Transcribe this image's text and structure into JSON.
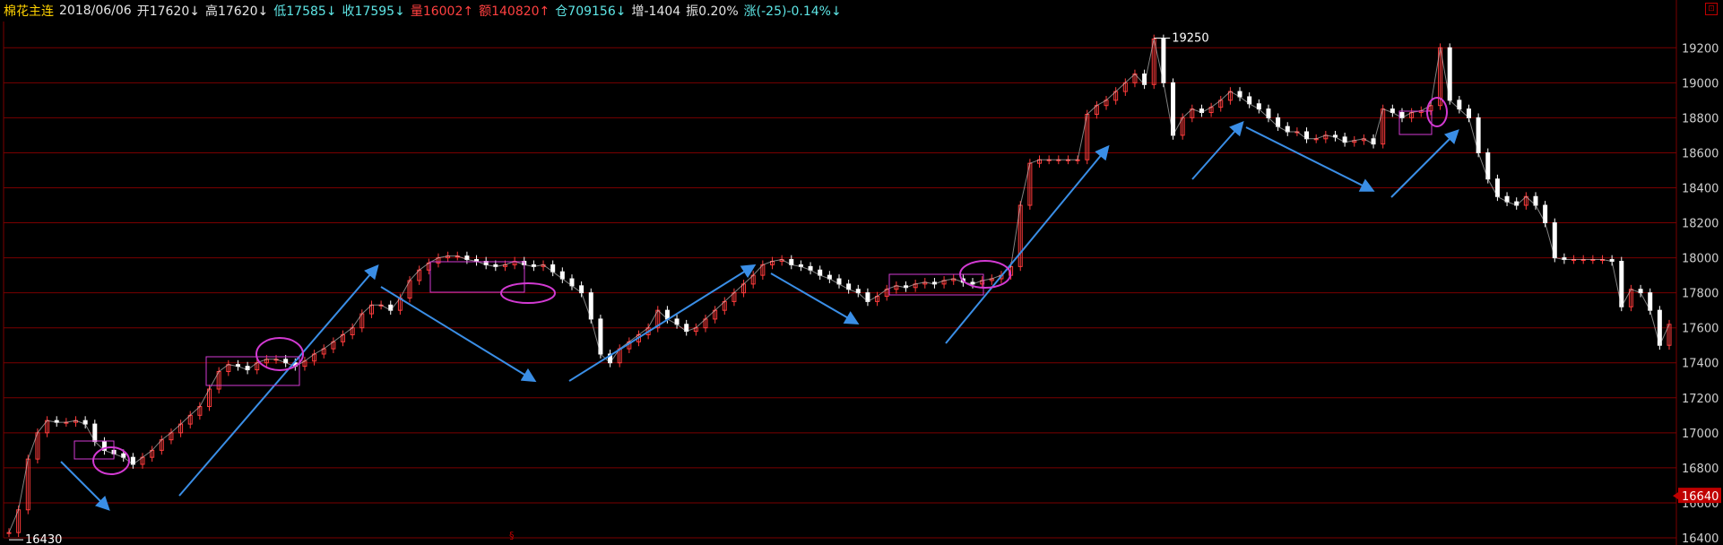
{
  "header": {
    "symbol": "棉花主连",
    "date": "2018/06/06",
    "open": "开17620↓",
    "high": "高17620↓",
    "low": "低17585↓",
    "close": "收17595↓",
    "volume": "量16002↑",
    "amount": "额140820↑",
    "open_interest": "仓709156↓",
    "oi_change": "增-1404",
    "amplitude": "振0.20%",
    "change": "涨(-25)-0.14%↓"
  },
  "colors": {
    "background": "#000000",
    "grid": "#7a0000",
    "axis_text": "#cfcfcf",
    "up": "#ff3b3b",
    "down": "#ffffff",
    "arrow": "#3a8ee6",
    "annotation": "#d23ad2",
    "price_tag": "#c00000"
  },
  "bottom_marker": "§",
  "chart_data": {
    "type": "line",
    "title": "",
    "xlabel": "",
    "ylabel": "",
    "ylim": [
      16400,
      19350
    ],
    "yticks": [
      16400,
      16600,
      16800,
      17000,
      17200,
      17400,
      17600,
      17800,
      18000,
      18200,
      18400,
      18600,
      18800,
      19000,
      19200
    ],
    "grid": true,
    "annotations": {
      "max_label": "19250",
      "min_label": "16430",
      "current_price_tag": "16640"
    },
    "series": [
      {
        "values": [
          16430,
          16560,
          16850,
          17000,
          17070,
          17060,
          17060,
          17070,
          17050,
          16950,
          16900,
          16880,
          16860,
          16820,
          16860,
          16900,
          16960,
          17000,
          17050,
          17100,
          17150,
          17250,
          17350,
          17390,
          17380,
          17360,
          17400,
          17420,
          17420,
          17400,
          17380,
          17410,
          17450,
          17480,
          17520,
          17560,
          17600,
          17680,
          17730,
          17730,
          17700,
          17770,
          17870,
          17930,
          17970,
          18000,
          18010,
          18010,
          17990,
          17980,
          17960,
          17950,
          17960,
          17980,
          17960,
          17950,
          17960,
          17920,
          17880,
          17840,
          17800,
          17650,
          17450,
          17400,
          17480,
          17520,
          17560,
          17600,
          17700,
          17650,
          17620,
          17580,
          17600,
          17650,
          17700,
          17750,
          17800,
          17850,
          17900,
          17960,
          17980,
          17990,
          17960,
          17950,
          17930,
          17900,
          17880,
          17850,
          17820,
          17800,
          17750,
          17780,
          17820,
          17840,
          17830,
          17850,
          17860,
          17850,
          17870,
          17880,
          17860,
          17850,
          17870,
          17880,
          17900,
          17950,
          18300,
          18540,
          18560,
          18560,
          18560,
          18560,
          18560,
          18820,
          18870,
          18900,
          18950,
          19000,
          19050,
          18990,
          19250,
          19000,
          18700,
          18800,
          18850,
          18830,
          18860,
          18900,
          18950,
          18920,
          18880,
          18850,
          18800,
          18750,
          18720,
          18720,
          18680,
          18680,
          18700,
          18690,
          18660,
          18670,
          18680,
          18650,
          18850,
          18830,
          18800,
          18830,
          18840,
          18870,
          19200,
          18900,
          18850,
          18800,
          18600,
          18450,
          18350,
          18320,
          18300,
          18350,
          18300,
          18200,
          18000,
          17990,
          17990,
          17990,
          17990,
          17990,
          17980,
          17720,
          17820,
          17800,
          17700,
          17500,
          17620
        ]
      }
    ]
  }
}
